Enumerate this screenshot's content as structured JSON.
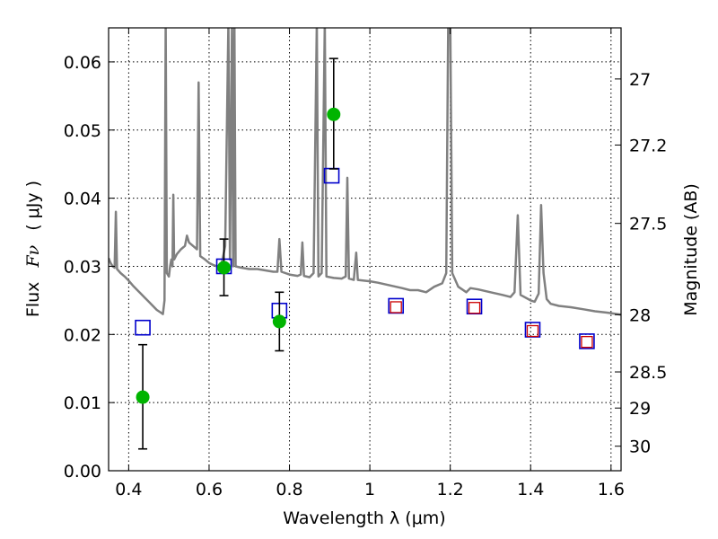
{
  "chart_data": {
    "type": "scatter",
    "xlabel": "Wavelength  λ (μm)",
    "ylabel_text": "Flux",
    "ylabel_symbol": "Fν",
    "ylabel_unit": "( μJy )",
    "y2label": "Magnitude (AB)",
    "xlim": [
      0.35,
      1.625
    ],
    "ylim": [
      0.0,
      0.065
    ],
    "grid": true,
    "x_ticks": [
      {
        "value": 0.4,
        "label": "0.4"
      },
      {
        "value": 0.6,
        "label": "0.6"
      },
      {
        "value": 0.8,
        "label": "0.8"
      },
      {
        "value": 1.0,
        "label": "1"
      },
      {
        "value": 1.2,
        "label": "1.2"
      },
      {
        "value": 1.4,
        "label": "1.4"
      },
      {
        "value": 1.6,
        "label": "1.6"
      }
    ],
    "y_ticks": [
      {
        "value": 0.0,
        "label": "0.00"
      },
      {
        "value": 0.01,
        "label": "0.01"
      },
      {
        "value": 0.02,
        "label": "0.02"
      },
      {
        "value": 0.03,
        "label": "0.03"
      },
      {
        "value": 0.04,
        "label": "0.04"
      },
      {
        "value": 0.05,
        "label": "0.05"
      },
      {
        "value": 0.06,
        "label": "0.06"
      }
    ],
    "y2_ticks": [
      {
        "label": "27",
        "flux": 0.0575
      },
      {
        "label": "27.2",
        "flux": 0.0478
      },
      {
        "label": "27.5",
        "flux": 0.0363
      },
      {
        "label": "28",
        "flux": 0.0229
      },
      {
        "label": "28.5",
        "flux": 0.0145
      },
      {
        "label": "29",
        "flux": 0.0092
      },
      {
        "label": "30",
        "flux": 0.0036
      }
    ],
    "colors": {
      "spectrum": "#808080",
      "observed": "#00b400",
      "model_blue": "#0000cc",
      "model_red": "#cc0000",
      "errorbar": "#000000"
    },
    "series": [
      {
        "kind": "spectrum",
        "points": [
          [
            0.35,
            0.0312
          ],
          [
            0.355,
            0.0305
          ],
          [
            0.36,
            0.03
          ],
          [
            0.365,
            0.0298
          ],
          [
            0.368,
            0.038
          ],
          [
            0.371,
            0.0296
          ],
          [
            0.38,
            0.029
          ],
          [
            0.39,
            0.0285
          ],
          [
            0.4,
            0.0279
          ],
          [
            0.41,
            0.0272
          ],
          [
            0.42,
            0.0266
          ],
          [
            0.43,
            0.026
          ],
          [
            0.44,
            0.0254
          ],
          [
            0.45,
            0.0248
          ],
          [
            0.46,
            0.0242
          ],
          [
            0.47,
            0.0236
          ],
          [
            0.48,
            0.0232
          ],
          [
            0.485,
            0.023
          ],
          [
            0.489,
            0.025
          ],
          [
            0.492,
            0.066
          ],
          [
            0.495,
            0.029
          ],
          [
            0.5,
            0.0285
          ],
          [
            0.503,
            0.03
          ],
          [
            0.506,
            0.031
          ],
          [
            0.509,
            0.03
          ],
          [
            0.511,
            0.0405
          ],
          [
            0.513,
            0.031
          ],
          [
            0.52,
            0.0318
          ],
          [
            0.53,
            0.0325
          ],
          [
            0.54,
            0.033
          ],
          [
            0.545,
            0.0345
          ],
          [
            0.55,
            0.0335
          ],
          [
            0.56,
            0.033
          ],
          [
            0.57,
            0.0325
          ],
          [
            0.574,
            0.057
          ],
          [
            0.578,
            0.0315
          ],
          [
            0.59,
            0.031
          ],
          [
            0.6,
            0.0305
          ],
          [
            0.61,
            0.0302
          ],
          [
            0.62,
            0.03
          ],
          [
            0.63,
            0.03
          ],
          [
            0.64,
            0.033
          ],
          [
            0.648,
            0.066
          ],
          [
            0.652,
            0.031
          ],
          [
            0.657,
            0.066
          ],
          [
            0.66,
            0.03
          ],
          [
            0.663,
            0.066
          ],
          [
            0.666,
            0.03
          ],
          [
            0.68,
            0.0298
          ],
          [
            0.7,
            0.0296
          ],
          [
            0.72,
            0.0296
          ],
          [
            0.74,
            0.0294
          ],
          [
            0.76,
            0.0292
          ],
          [
            0.77,
            0.0292
          ],
          [
            0.775,
            0.034
          ],
          [
            0.78,
            0.0292
          ],
          [
            0.8,
            0.0288
          ],
          [
            0.82,
            0.0286
          ],
          [
            0.828,
            0.0288
          ],
          [
            0.832,
            0.0335
          ],
          [
            0.836,
            0.0286
          ],
          [
            0.85,
            0.0284
          ],
          [
            0.86,
            0.029
          ],
          [
            0.868,
            0.066
          ],
          [
            0.872,
            0.0285
          ],
          [
            0.88,
            0.029
          ],
          [
            0.888,
            0.066
          ],
          [
            0.892,
            0.0285
          ],
          [
            0.91,
            0.0283
          ],
          [
            0.93,
            0.0282
          ],
          [
            0.94,
            0.0285
          ],
          [
            0.944,
            0.043
          ],
          [
            0.948,
            0.0282
          ],
          [
            0.96,
            0.028
          ],
          [
            0.966,
            0.032
          ],
          [
            0.97,
            0.028
          ],
          [
            1.0,
            0.0278
          ],
          [
            1.02,
            0.0276
          ],
          [
            1.05,
            0.0272
          ],
          [
            1.08,
            0.0268
          ],
          [
            1.1,
            0.0265
          ],
          [
            1.12,
            0.0265
          ],
          [
            1.14,
            0.0262
          ],
          [
            1.16,
            0.027
          ],
          [
            1.18,
            0.0275
          ],
          [
            1.19,
            0.029
          ],
          [
            1.195,
            0.066
          ],
          [
            1.2,
            0.066
          ],
          [
            1.205,
            0.029
          ],
          [
            1.22,
            0.027
          ],
          [
            1.24,
            0.0262
          ],
          [
            1.25,
            0.0268
          ],
          [
            1.27,
            0.0266
          ],
          [
            1.3,
            0.0262
          ],
          [
            1.33,
            0.0258
          ],
          [
            1.35,
            0.0255
          ],
          [
            1.36,
            0.0262
          ],
          [
            1.368,
            0.0375
          ],
          [
            1.375,
            0.0258
          ],
          [
            1.4,
            0.025
          ],
          [
            1.41,
            0.0248
          ],
          [
            1.42,
            0.026
          ],
          [
            1.426,
            0.039
          ],
          [
            1.432,
            0.029
          ],
          [
            1.44,
            0.0252
          ],
          [
            1.45,
            0.0245
          ],
          [
            1.47,
            0.0242
          ],
          [
            1.5,
            0.024
          ],
          [
            1.53,
            0.0237
          ],
          [
            1.56,
            0.0234
          ],
          [
            1.59,
            0.0232
          ],
          [
            1.625,
            0.0229
          ]
        ]
      },
      {
        "kind": "model_blue",
        "points": [
          [
            0.435,
            0.021
          ],
          [
            0.637,
            0.03
          ],
          [
            0.775,
            0.0235
          ],
          [
            0.905,
            0.0433
          ],
          [
            1.065,
            0.0242
          ],
          [
            1.26,
            0.0241
          ],
          [
            1.405,
            0.0207
          ],
          [
            1.54,
            0.019
          ]
        ]
      },
      {
        "kind": "model_red",
        "points": [
          [
            1.065,
            0.024
          ],
          [
            1.26,
            0.0239
          ],
          [
            1.405,
            0.0205
          ],
          [
            1.54,
            0.0189
          ]
        ]
      },
      {
        "kind": "observed",
        "points": [
          {
            "x": 0.435,
            "y": 0.0108,
            "lo": 0.0032,
            "hi": 0.0185
          },
          {
            "x": 0.637,
            "y": 0.0298,
            "lo": 0.0257,
            "hi": 0.034
          },
          {
            "x": 0.775,
            "y": 0.0219,
            "lo": 0.0176,
            "hi": 0.0262
          },
          {
            "x": 0.91,
            "y": 0.0523,
            "lo": 0.0443,
            "hi": 0.0605
          }
        ]
      }
    ]
  }
}
